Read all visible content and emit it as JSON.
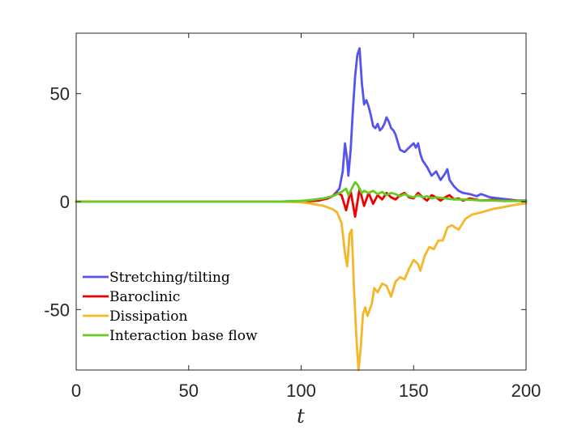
{
  "chart_data": {
    "type": "line",
    "title": "",
    "xlabel": "t",
    "ylabel": "",
    "xlim": [
      0,
      200
    ],
    "ylim": [
      -78,
      78
    ],
    "xticks": [
      0,
      50,
      100,
      150,
      200
    ],
    "xtick_labels": [
      "0",
      "50",
      "100",
      "150",
      "200"
    ],
    "yticks": [
      50,
      0,
      -50
    ],
    "ytick_labels": [
      "50",
      "0",
      "-50"
    ],
    "legend_position": "bottom-left",
    "series": [
      {
        "name": "Stretching/tilting",
        "color": "#5555ee",
        "x": [
          0,
          90,
          100,
          105,
          110,
          114,
          117,
          118.5,
          119.5,
          120.5,
          121,
          122,
          123,
          124,
          125,
          126,
          127,
          128,
          129,
          130,
          131,
          132,
          133,
          134,
          135,
          136,
          137,
          138,
          139,
          140,
          141,
          142,
          144,
          146,
          148,
          150,
          151,
          152,
          153,
          154,
          156,
          158,
          160,
          162,
          164,
          165,
          166,
          168,
          170,
          172,
          175,
          178,
          180,
          184,
          188,
          192,
          196,
          200
        ],
        "y": [
          0,
          0,
          0.3,
          0.8,
          1.5,
          2.5,
          6,
          14,
          27,
          19,
          12,
          24,
          42,
          58,
          68,
          71,
          55,
          45,
          47,
          44,
          40,
          35,
          34,
          36,
          33,
          34,
          36,
          39,
          37,
          34,
          33,
          31,
          24,
          23,
          25,
          27,
          25,
          27,
          22,
          19,
          16,
          12,
          14,
          10,
          13,
          15,
          10,
          7,
          5,
          4,
          3.5,
          2.5,
          3.5,
          2,
          1.5,
          1,
          0.5,
          0.5
        ]
      },
      {
        "name": "Baroclinic",
        "color": "#ee0000",
        "x": [
          0,
          100,
          105,
          108,
          110,
          112,
          114,
          116,
          118,
          120,
          122,
          124,
          126,
          128,
          130,
          132,
          134,
          136,
          138,
          140,
          142,
          144,
          146,
          148,
          150,
          152,
          154,
          156,
          158,
          160,
          162,
          164,
          166,
          168,
          170,
          172,
          175,
          180,
          185,
          190,
          195,
          200
        ],
        "y": [
          0,
          0,
          0.3,
          0.5,
          1,
          1.5,
          2.5,
          4,
          3,
          -4,
          5,
          -7,
          6,
          -2,
          4,
          -1,
          3,
          1,
          4,
          2,
          1,
          3,
          4,
          2,
          1.5,
          4,
          2,
          0.5,
          3,
          2,
          0.5,
          2,
          3,
          1,
          1.5,
          0.5,
          1.5,
          0.5,
          0.8,
          0.3,
          0.5,
          0
        ]
      },
      {
        "name": "Dissipation",
        "color": "#f5b628",
        "x": [
          0,
          90,
          100,
          105,
          110,
          114,
          116,
          118,
          119.5,
          120.5,
          121.5,
          122.5,
          123.5,
          124.5,
          125.5,
          126.5,
          127.5,
          128.5,
          129.5,
          130.5,
          131.5,
          132.5,
          134,
          136,
          138,
          140,
          142,
          144,
          146,
          148,
          150,
          152,
          153,
          155,
          157,
          159,
          161,
          163,
          165,
          167,
          170,
          173,
          176,
          180,
          185,
          190,
          195,
          200
        ],
        "y": [
          0,
          0,
          -0.3,
          -1,
          -2,
          -3.5,
          -5,
          -10,
          -24,
          -30,
          -15,
          -13,
          -40,
          -62,
          -78,
          -68,
          -52,
          -49,
          -53,
          -50,
          -47,
          -40,
          -42,
          -38,
          -39,
          -44,
          -37,
          -35,
          -36,
          -31,
          -27,
          -29,
          -32,
          -25,
          -21,
          -22,
          -18,
          -18,
          -12,
          -11,
          -13,
          -8,
          -6,
          -5,
          -3.5,
          -2.5,
          -1.5,
          -0.8
        ]
      },
      {
        "name": "Interaction base flow",
        "color": "#66cc22",
        "x": [
          0,
          90,
          100,
          105,
          110,
          114,
          116,
          118,
          120,
          121,
          122,
          123,
          124,
          125,
          126,
          127,
          128,
          130,
          132,
          134,
          136,
          138,
          140,
          142,
          144,
          146,
          148,
          150,
          152,
          154,
          156,
          158,
          160,
          164,
          168,
          172,
          176,
          180,
          185,
          190,
          195,
          200
        ],
        "y": [
          0,
          0,
          0.3,
          0.8,
          1.5,
          2.5,
          3.5,
          4.5,
          6,
          3,
          5,
          7,
          9,
          8,
          6,
          4,
          5,
          4,
          5,
          3.5,
          4.5,
          3,
          4,
          3.5,
          2.5,
          3.5,
          2.5,
          2,
          3,
          2,
          2.5,
          1.5,
          2,
          1.5,
          1,
          1,
          0.8,
          0.5,
          0.5,
          0.3,
          0.3,
          0.3
        ]
      }
    ]
  }
}
